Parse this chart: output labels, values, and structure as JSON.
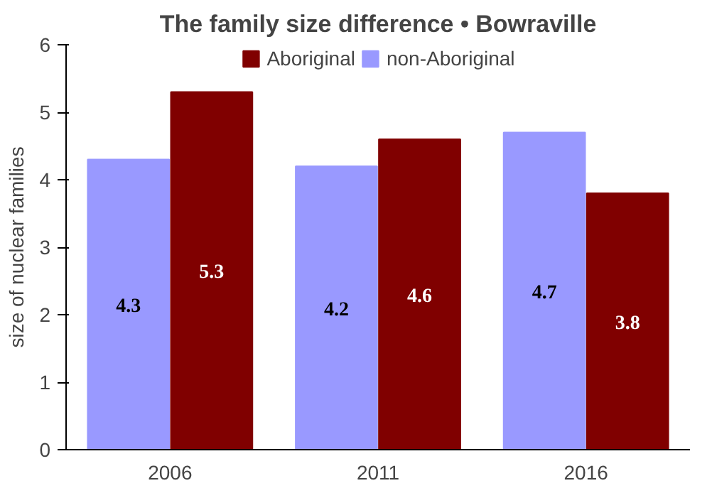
{
  "chart_data": {
    "type": "bar",
    "title": "The family size difference • Bowraville",
    "ylabel": "size of nuclear families",
    "categories": [
      "2006",
      "2011",
      "2016"
    ],
    "series": [
      {
        "name": "non-Aboriginal",
        "color": "#9999ff",
        "values": [
          4.3,
          4.2,
          4.7
        ]
      },
      {
        "name": "Aboriginal",
        "color": "#800000",
        "values": [
          5.3,
          4.6,
          3.8
        ]
      }
    ],
    "ylim": [
      0,
      6
    ],
    "yticks": [
      0,
      1,
      2,
      3,
      4,
      5,
      6
    ],
    "grid": false,
    "legend": "top",
    "data_labels": true
  }
}
